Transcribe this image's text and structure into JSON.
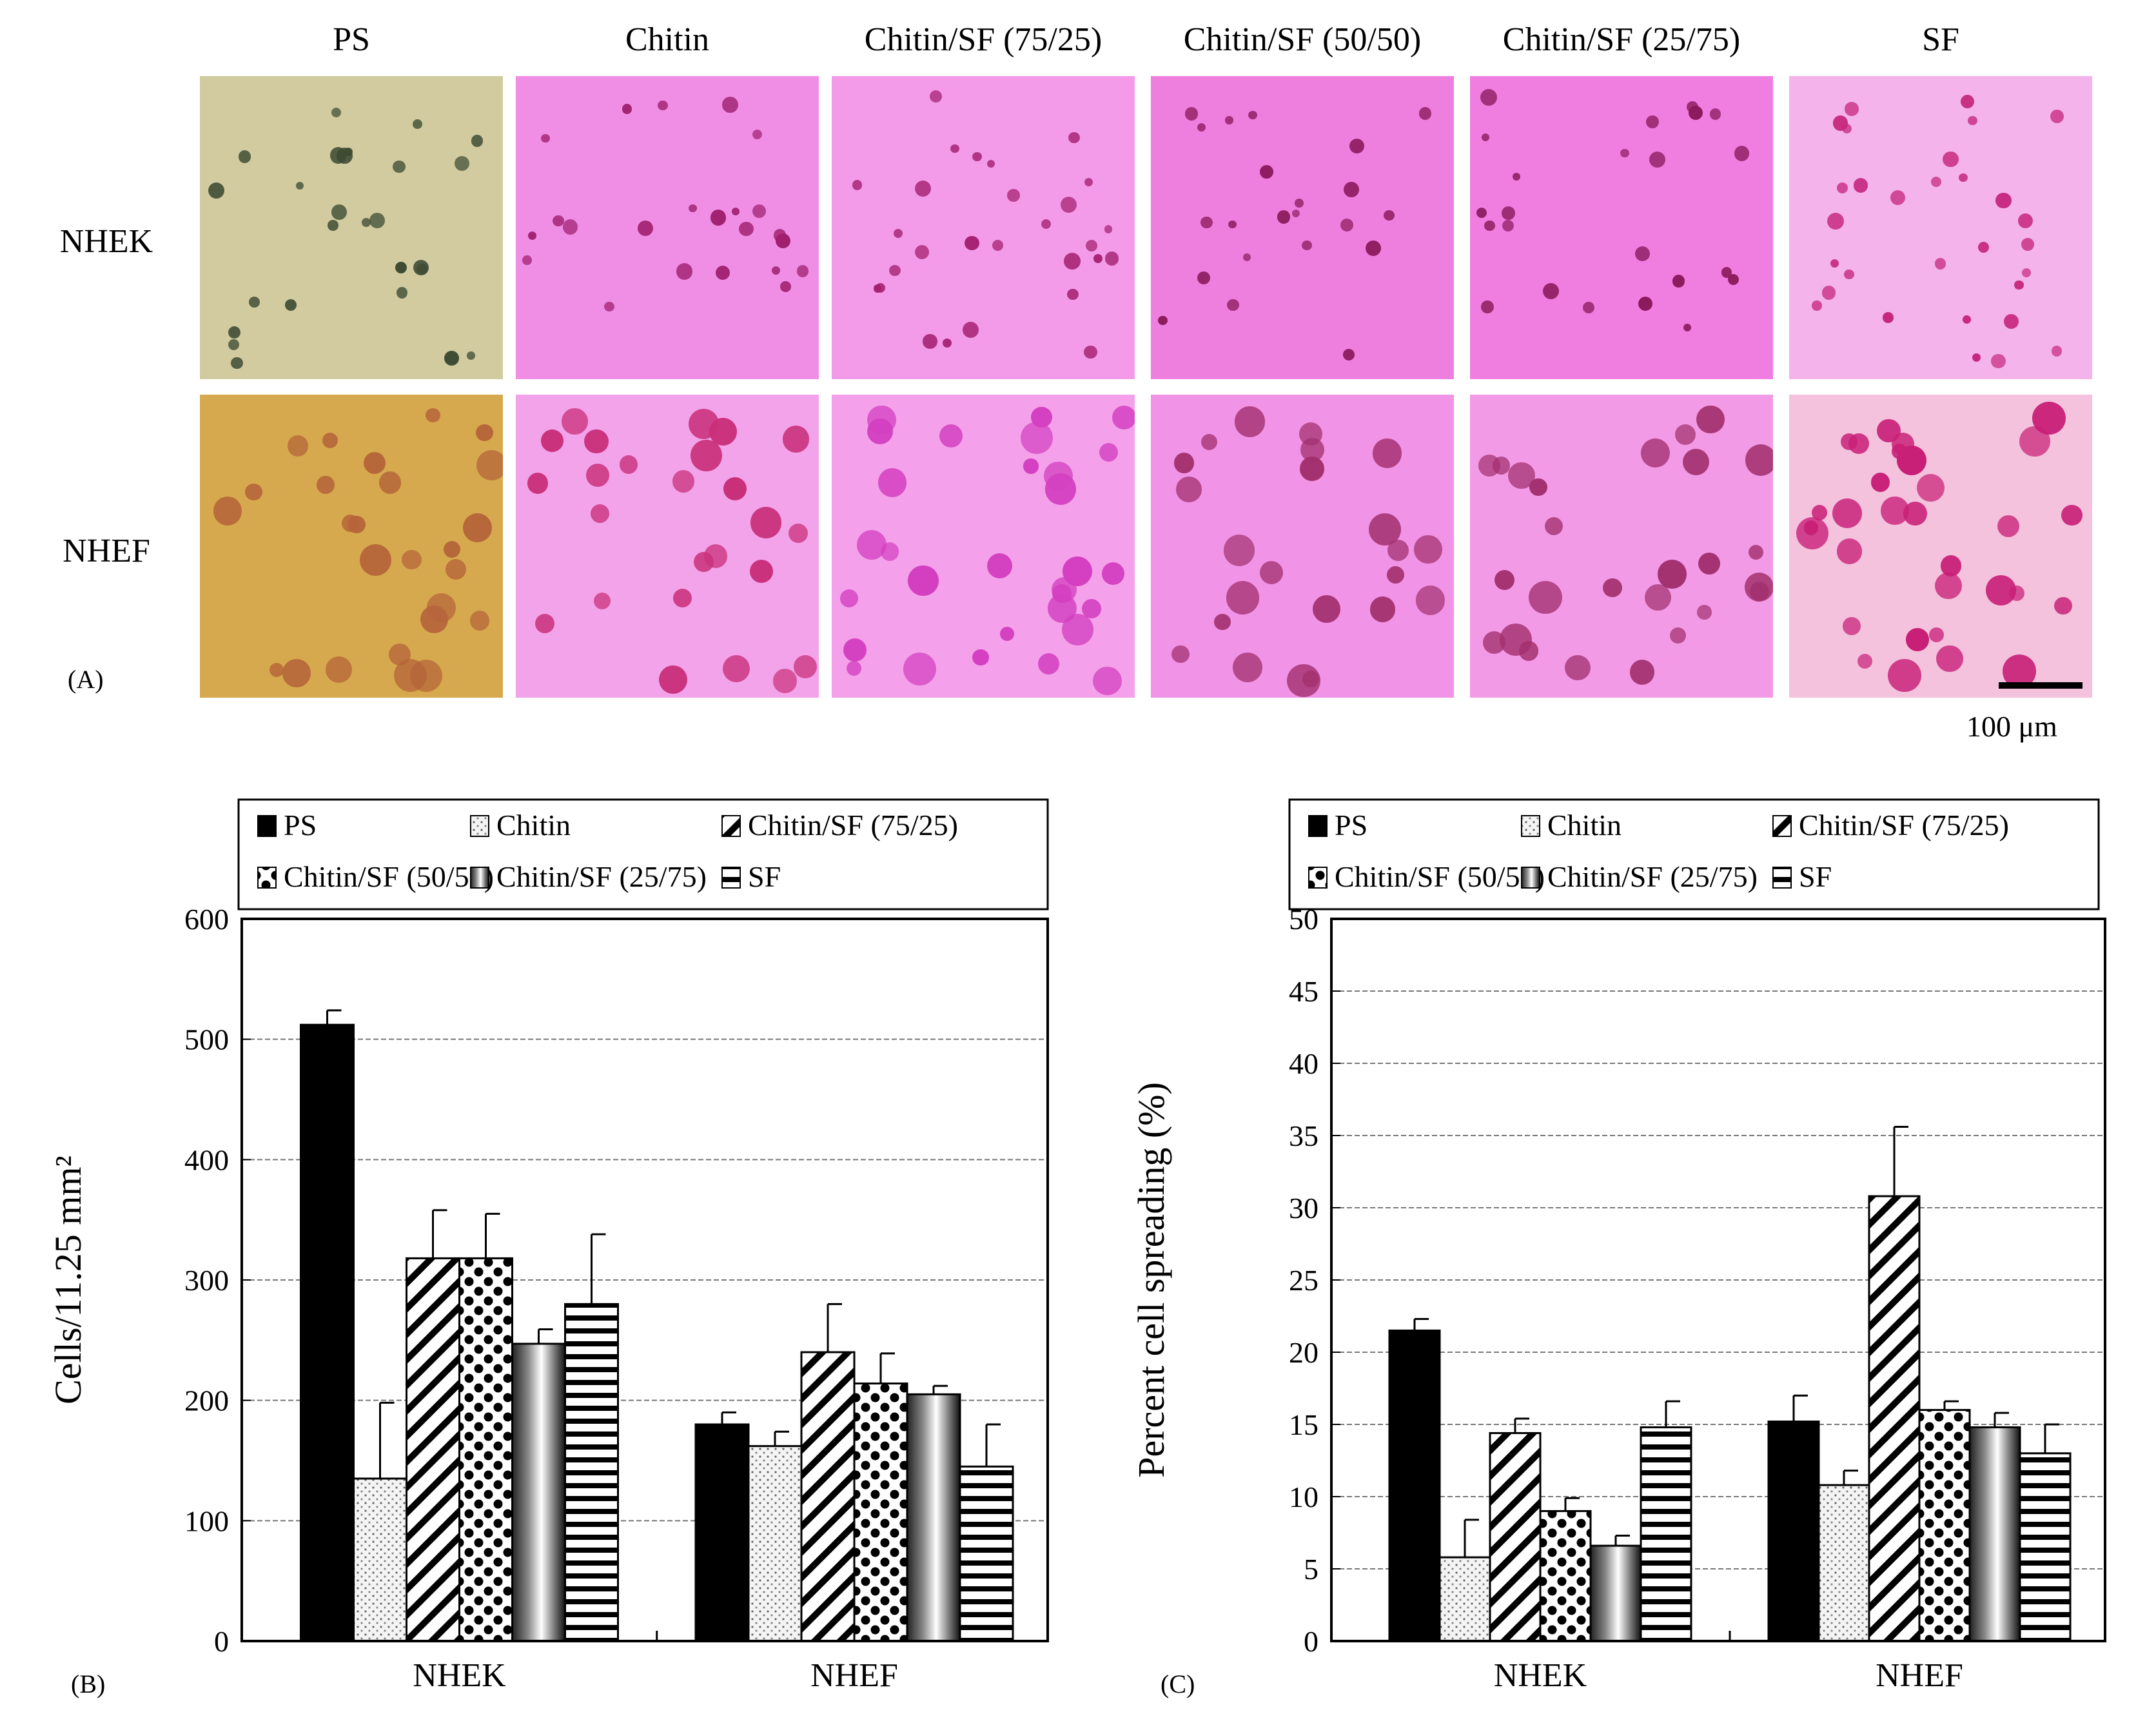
{
  "panel_a": {
    "panel_label": "(A)",
    "columns": [
      "PS",
      "Chitin",
      "Chitin/SF (75/25)",
      "Chitin/SF (50/50)",
      "Chitin/SF (25/75)",
      "SF"
    ],
    "rows": [
      "NHEK",
      "NHEF"
    ],
    "scale_bar_label": "100 μm"
  },
  "legend": {
    "items": [
      "PS",
      "Chitin",
      "Chitin/SF (75/25)",
      "Chitin/SF (50/50)",
      "Chitin/SF (25/75)",
      "SF"
    ]
  },
  "chart_data": [
    {
      "type": "bar",
      "panel_label": "(B)",
      "categories": [
        "NHEK",
        "NHEF"
      ],
      "ylabel": "Cells/11.25 mm²",
      "ylim": [
        0,
        600
      ],
      "yticks": [
        0,
        100,
        200,
        300,
        400,
        500,
        600
      ],
      "grid": true,
      "series": [
        {
          "name": "PS",
          "values": [
            512,
            180
          ],
          "errors": [
            12,
            10
          ]
        },
        {
          "name": "Chitin",
          "values": [
            135,
            162
          ],
          "errors": [
            63,
            12
          ]
        },
        {
          "name": "Chitin/SF (75/25)",
          "values": [
            318,
            240
          ],
          "errors": [
            40,
            40
          ]
        },
        {
          "name": "Chitin/SF (50/50)",
          "values": [
            318,
            214
          ],
          "errors": [
            37,
            25
          ]
        },
        {
          "name": "Chitin/SF (25/75)",
          "values": [
            247,
            205
          ],
          "errors": [
            12,
            7
          ]
        },
        {
          "name": "SF",
          "values": [
            280,
            145
          ],
          "errors": [
            58,
            35
          ]
        }
      ]
    },
    {
      "type": "bar",
      "panel_label": "(C)",
      "categories": [
        "NHEK",
        "NHEF"
      ],
      "ylabel": "Percent cell spreading (%)",
      "ylim": [
        0,
        50
      ],
      "yticks": [
        0,
        5,
        10,
        15,
        20,
        25,
        30,
        35,
        40,
        45,
        50
      ],
      "grid": true,
      "series": [
        {
          "name": "PS",
          "values": [
            21.5,
            15.2
          ],
          "errors": [
            0.8,
            1.8
          ]
        },
        {
          "name": "Chitin",
          "values": [
            5.8,
            10.8
          ],
          "errors": [
            2.6,
            1.0
          ]
        },
        {
          "name": "Chitin/SF (75/25)",
          "values": [
            14.4,
            30.8
          ],
          "errors": [
            1.0,
            4.8
          ]
        },
        {
          "name": "Chitin/SF (50/50)",
          "values": [
            9.0,
            16.0
          ],
          "errors": [
            0.9,
            0.6
          ]
        },
        {
          "name": "Chitin/SF (25/75)",
          "values": [
            6.6,
            14.8
          ],
          "errors": [
            0.7,
            1.0
          ]
        },
        {
          "name": "SF",
          "values": [
            14.8,
            13.0
          ],
          "errors": [
            1.8,
            2.0
          ]
        }
      ]
    }
  ]
}
